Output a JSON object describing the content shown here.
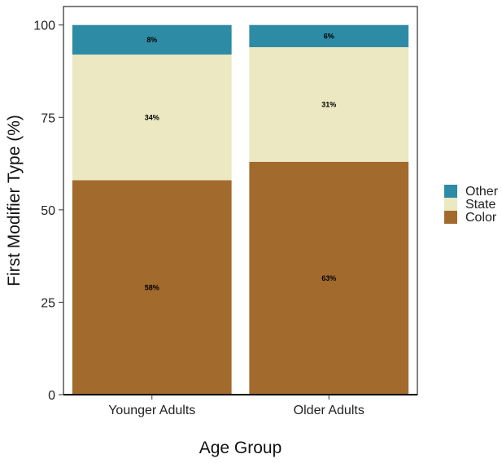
{
  "chart_data": {
    "type": "bar",
    "stacked": true,
    "title": "",
    "xlabel": "Age Group",
    "ylabel": "First Modifier Type (%)",
    "categories": [
      "Younger Adults",
      "Older Adults"
    ],
    "series": [
      {
        "name": "Color",
        "values": [
          58,
          63
        ],
        "labels": [
          "58%",
          "63%"
        ],
        "color": "#a36a2d"
      },
      {
        "name": "State",
        "values": [
          34,
          31
        ],
        "labels": [
          "34%",
          "31%"
        ],
        "color": "#ebe8c2"
      },
      {
        "name": "Other",
        "values": [
          8,
          6
        ],
        "labels": [
          "8%",
          "6%"
        ],
        "color": "#2d8ba6"
      }
    ],
    "ylim": [
      0,
      105
    ],
    "yticks": [
      0,
      25,
      50,
      75,
      100
    ],
    "legend": {
      "position": "right",
      "entries": [
        "Other",
        "State",
        "Color"
      ]
    },
    "grid": false
  }
}
